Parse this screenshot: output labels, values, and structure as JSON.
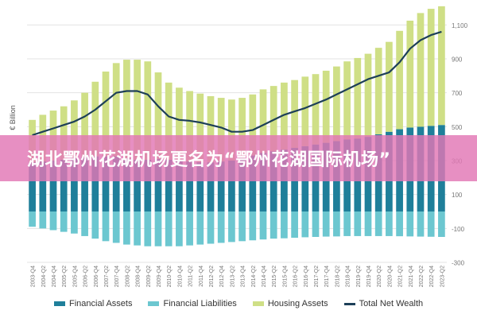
{
  "banner_text": "湖北鄂州花湖机场更名为“鄂州花湖国际机场”",
  "colors": {
    "financial_assets": "#1f7f9a",
    "financial_liabilities": "#6cc7d0",
    "housing_assets": "#cfdf86",
    "total_net_wealth": "#1d3f58",
    "grid": "#e3e3e3",
    "axis_text": "#777777"
  },
  "chart_data": {
    "type": "bar",
    "title": "",
    "xlabel": "",
    "ylabel": "€ Billion",
    "ylim": [
      -300,
      1200
    ],
    "yticks": [
      -300,
      -100,
      100,
      300,
      500,
      700,
      900,
      1100
    ],
    "ytick_labels": [
      "-300",
      "-100",
      "100",
      "300",
      "500",
      "700",
      "900",
      "1,100"
    ],
    "grid": true,
    "legend_position": "bottom",
    "categories": [
      "2003-Q4",
      "2004-Q2",
      "2004-Q4",
      "2005-Q2",
      "2005-Q4",
      "2006-Q2",
      "2006-Q4",
      "2007-Q2",
      "2007-Q4",
      "2008-Q2",
      "2008-Q4",
      "2009-Q2",
      "2009-Q4",
      "2010-Q2",
      "2010-Q4",
      "2011-Q2",
      "2011-Q4",
      "2012-Q2",
      "2012-Q4",
      "2013-Q2",
      "2013-Q4",
      "2014-Q2",
      "2014-Q4",
      "2015-Q2",
      "2015-Q4",
      "2016-Q2",
      "2016-Q4",
      "2017-Q2",
      "2017-Q4",
      "2018-Q2",
      "2018-Q4",
      "2019-Q2",
      "2019-Q4",
      "2020-Q2",
      "2020-Q4",
      "2021-Q2",
      "2021-Q4",
      "2022-Q2",
      "2022-Q4",
      "2023-Q2"
    ],
    "series": [
      {
        "name": "Financial Assets",
        "type": "bar",
        "values": [
          290,
          295,
          300,
          305,
          315,
          320,
          325,
          325,
          325,
          315,
          305,
          305,
          310,
          305,
          300,
          295,
          290,
          290,
          295,
          300,
          315,
          330,
          345,
          355,
          365,
          375,
          385,
          395,
          405,
          415,
          425,
          430,
          440,
          455,
          470,
          485,
          495,
          500,
          505,
          510
        ]
      },
      {
        "name": "Financial Liabilities",
        "type": "bar",
        "values": [
          -90,
          -100,
          -110,
          -120,
          -130,
          -145,
          -160,
          -175,
          -185,
          -195,
          -200,
          -205,
          -205,
          -205,
          -205,
          -200,
          -195,
          -190,
          -185,
          -180,
          -175,
          -170,
          -165,
          -160,
          -158,
          -155,
          -152,
          -150,
          -148,
          -147,
          -145,
          -145,
          -145,
          -145,
          -145,
          -146,
          -147,
          -148,
          -149,
          -150
        ]
      },
      {
        "name": "Housing Assets",
        "type": "bar",
        "values": [
          250,
          275,
          295,
          315,
          340,
          380,
          440,
          500,
          550,
          580,
          590,
          580,
          510,
          455,
          430,
          415,
          405,
          390,
          375,
          360,
          355,
          360,
          375,
          385,
          395,
          400,
          410,
          415,
          425,
          440,
          460,
          475,
          490,
          510,
          530,
          580,
          630,
          670,
          690,
          700
        ]
      },
      {
        "name": "Total Net Wealth",
        "type": "line",
        "values": [
          450,
          470,
          490,
          510,
          530,
          560,
          600,
          650,
          700,
          710,
          710,
          690,
          620,
          560,
          540,
          535,
          525,
          510,
          495,
          470,
          470,
          480,
          510,
          540,
          570,
          590,
          610,
          635,
          660,
          690,
          720,
          750,
          780,
          800,
          820,
          880,
          960,
          1010,
          1040,
          1060
        ]
      }
    ]
  }
}
